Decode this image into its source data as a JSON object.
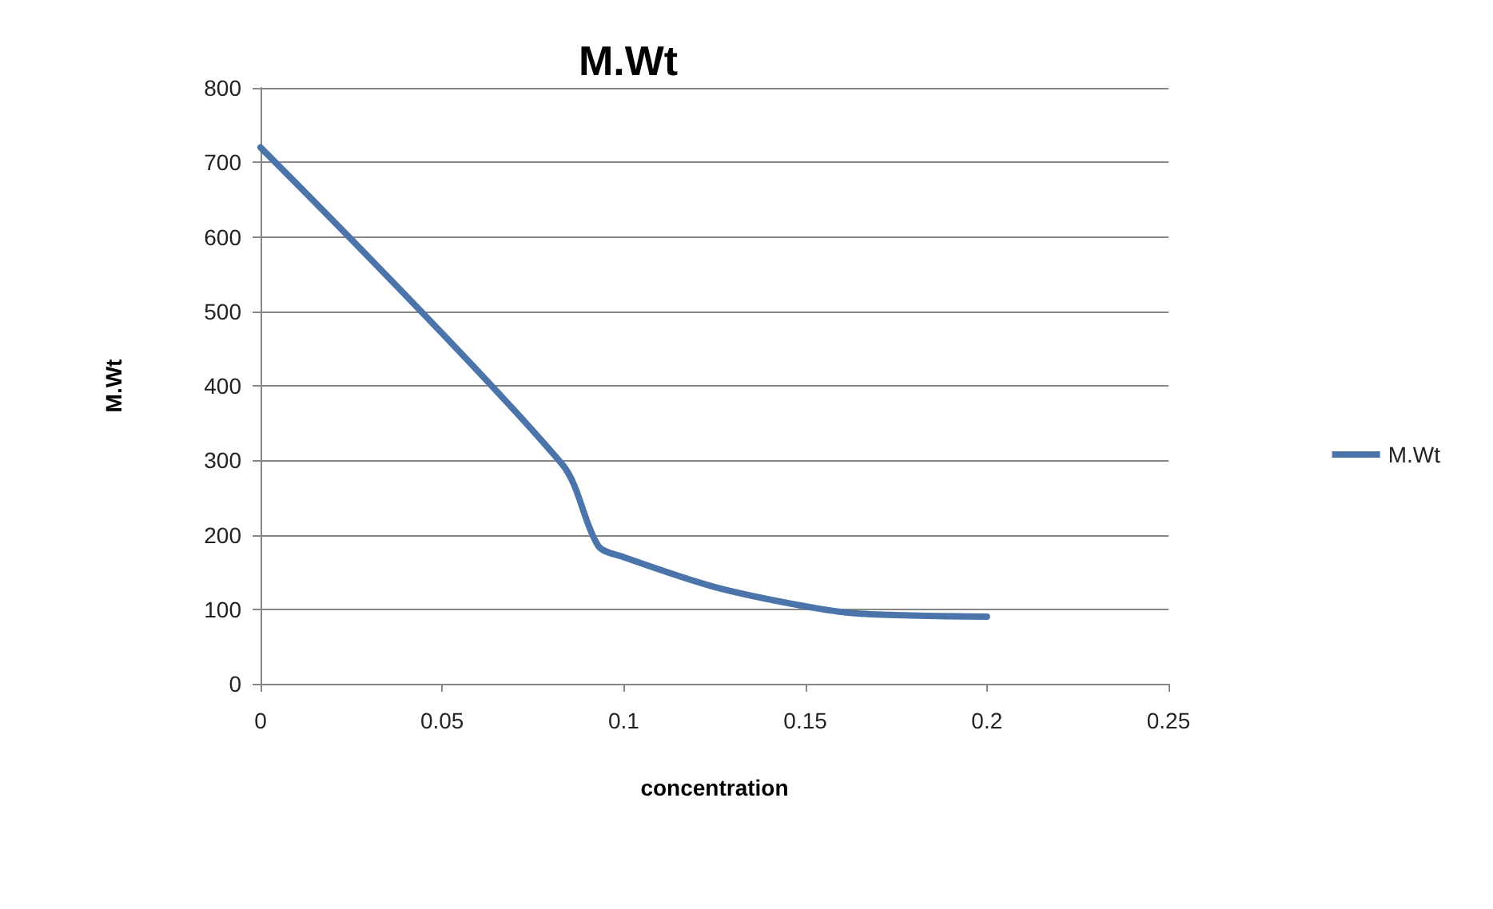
{
  "chart_data": {
    "type": "line",
    "title": "M.Wt",
    "xlabel": "concentration",
    "ylabel": "M.Wt",
    "x": [
      0,
      0.083,
      0.093,
      0.1,
      0.125,
      0.15,
      0.165,
      0.2
    ],
    "series": [
      {
        "name": "M.Wt",
        "color": "#4a74aa",
        "values": [
          720,
          295,
          185,
          170,
          130,
          104,
          94,
          90
        ]
      }
    ],
    "xlim": [
      0,
      0.25
    ],
    "xticks": [
      0,
      0.05,
      0.1,
      0.15,
      0.2,
      0.25
    ],
    "ylim": [
      0,
      800
    ],
    "yticks": [
      0,
      100,
      200,
      300,
      400,
      500,
      600,
      700,
      800
    ],
    "grid": "y",
    "legend": "right",
    "marker": "none",
    "line_style": "solid"
  }
}
